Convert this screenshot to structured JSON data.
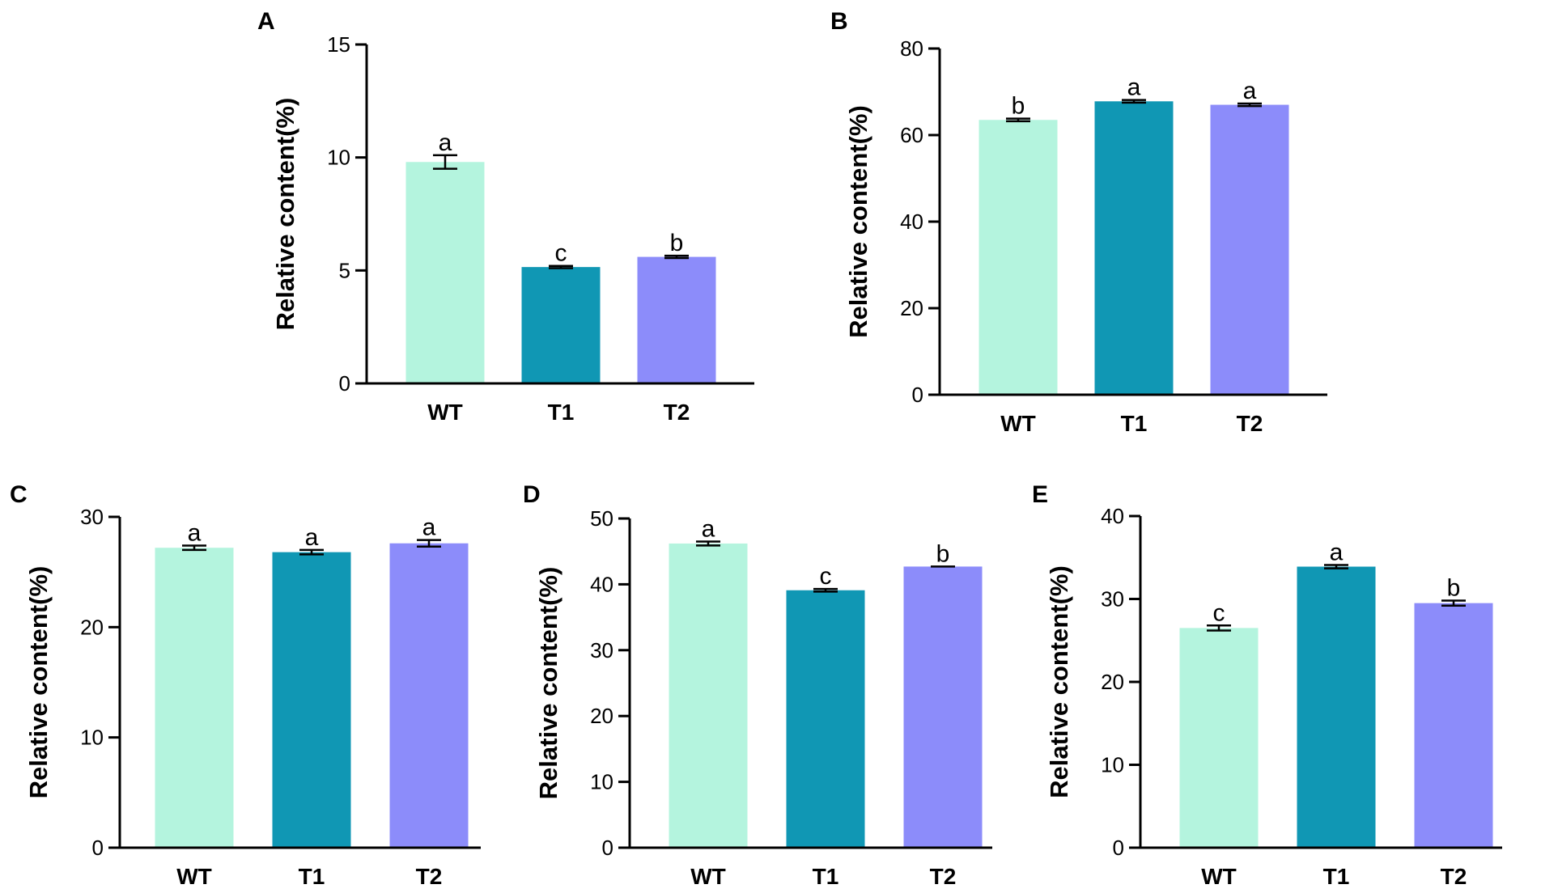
{
  "colors": {
    "WT": "#b4f4de",
    "T1": "#1097b4",
    "T2": "#8c8cfa"
  },
  "chart_data": [
    {
      "panel": "A",
      "type": "bar",
      "categories": [
        "WT",
        "T1",
        "T2"
      ],
      "values": [
        9.8,
        5.15,
        5.6
      ],
      "errors": [
        0.3,
        0.05,
        0.05
      ],
      "significance": [
        "a",
        "c",
        "b"
      ],
      "ylabel": "Relative content(%)",
      "ylim": [
        0,
        15
      ],
      "yticks": [
        0,
        5,
        10,
        15
      ]
    },
    {
      "panel": "B",
      "type": "bar",
      "categories": [
        "WT",
        "T1",
        "T2"
      ],
      "values": [
        63.5,
        67.8,
        67.0
      ],
      "errors": [
        0.3,
        0.3,
        0.3
      ],
      "significance": [
        "b",
        "a",
        "a"
      ],
      "ylabel": "Relative content(%)",
      "ylim": [
        0,
        80
      ],
      "yticks": [
        0,
        20,
        40,
        60,
        80
      ]
    },
    {
      "panel": "C",
      "type": "bar",
      "categories": [
        "WT",
        "T1",
        "T2"
      ],
      "values": [
        27.2,
        26.8,
        27.6
      ],
      "errors": [
        0.2,
        0.2,
        0.3
      ],
      "significance": [
        "a",
        "a",
        "a"
      ],
      "ylabel": "Relative content(%)",
      "ylim": [
        0,
        30
      ],
      "yticks": [
        0,
        10,
        20,
        30
      ]
    },
    {
      "panel": "D",
      "type": "bar",
      "categories": [
        "WT",
        "T1",
        "T2"
      ],
      "values": [
        46.2,
        39.1,
        42.7
      ],
      "errors": [
        0.3,
        0.2,
        0.0
      ],
      "significance": [
        "a",
        "c",
        "b"
      ],
      "ylabel": "Relative content(%)",
      "ylim": [
        0,
        50
      ],
      "yticks": [
        0,
        10,
        20,
        30,
        40,
        50
      ]
    },
    {
      "panel": "E",
      "type": "bar",
      "categories": [
        "WT",
        "T1",
        "T2"
      ],
      "values": [
        26.5,
        33.9,
        29.5
      ],
      "errors": [
        0.3,
        0.2,
        0.3
      ],
      "significance": [
        "c",
        "a",
        "b"
      ],
      "ylabel": "Relative content(%)",
      "ylim": [
        0,
        40
      ],
      "yticks": [
        0,
        10,
        20,
        30,
        40
      ]
    }
  ]
}
